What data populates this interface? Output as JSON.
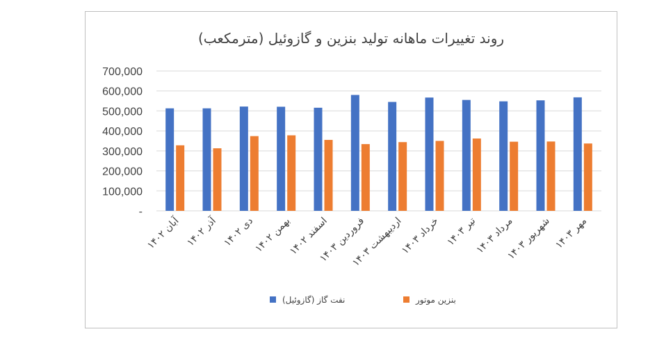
{
  "chart_data": {
    "type": "bar",
    "title": "روند تغییرات ماهانه تولید بنزین و گازوئیل (مترمکعب)",
    "xlabel": "",
    "ylabel": "",
    "categories": [
      "آبان ۱۴۰۲",
      "آذر ۱۴۰۲",
      "دی ۱۴۰۲",
      "بهمن ۱۴۰۲",
      "اسفند ۱۴۰۲",
      "فروردین ۱۴۰۳",
      "اردیبهشت ۱۴۰۳",
      "خرداد ۱۴۰۳",
      "تیر ۱۴۰۳",
      "مرداد ۱۴۰۳",
      "شهریور ۱۴۰۳",
      "مهر ۱۴۰۳"
    ],
    "series": [
      {
        "name": "نفت گاز (گازوئیل)",
        "color": "#4472c4",
        "values": [
          513000,
          513000,
          522000,
          521000,
          516000,
          580000,
          545000,
          567000,
          555000,
          548000,
          553000,
          568000
        ]
      },
      {
        "name": "بنزین موتور",
        "color": "#ed7d31",
        "values": [
          328000,
          313000,
          374000,
          378000,
          355000,
          334000,
          344000,
          350000,
          362000,
          346000,
          347000,
          337000
        ]
      }
    ],
    "ylim": [
      0,
      700000
    ],
    "yticks": [
      "-",
      "100,000",
      "200,000",
      "300,000",
      "400,000",
      "500,000",
      "600,000",
      "700,000"
    ],
    "grid": true,
    "legend": "bottom"
  }
}
